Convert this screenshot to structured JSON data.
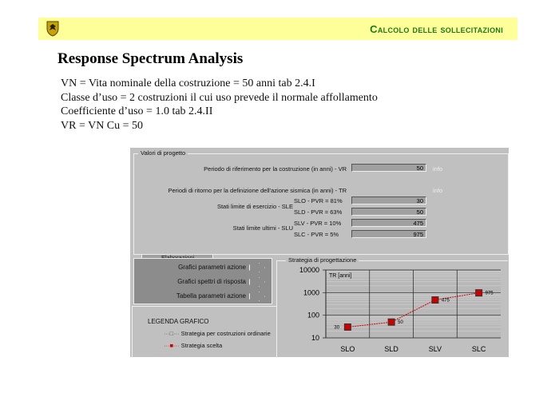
{
  "header": {
    "title": "Calcolo delle sollecitazioni",
    "logo": "eagle-crest-logo"
  },
  "page_title": "Response Spectrum Analysis",
  "lines": [
    "VN = Vita nominale della costruzione = 50 anni tab 2.4.I",
    "Classe d’uso = 2 costruzioni il cui uso prevede il normale affollamento",
    "Coefficiente d’uso = 1.0 tab 2.4.II",
    "VR = VN Cu = 50"
  ],
  "panel": {
    "group_title": "Valori di progetto",
    "vr_label": "Periodo di riferimento per la costruzione (in anni) - VR",
    "vr_value": "50",
    "info": "info",
    "tr_label": "Periodi di ritorno per la definizione dell'azione sismica (in anni) - TR",
    "sle_label": "Stati limite di esercizio - SLE",
    "slu_label": "Stati limite ultimi - SLU",
    "states": [
      {
        "label": "SLO - PVR = 81%",
        "value": "30"
      },
      {
        "label": "SLD - PVR = 63%",
        "value": "50"
      },
      {
        "label": "SLV - PVR = 10%",
        "value": "475"
      },
      {
        "label": "SLC - PVR =  5%",
        "value": "975"
      }
    ],
    "elab_tab": "Elaborazioni",
    "buttons": [
      "Grafici parametri azione",
      "Grafici spettri di risposta",
      "Tabella parametri azione"
    ],
    "legend_title": "LEGENDA GRAFICO",
    "legend": [
      "Strategia per costruzioni ordinarie",
      "Strategia scelta"
    ],
    "chart_group_title": "Strategia di progettazione"
  },
  "chart_data": {
    "type": "line",
    "ylabel": "TR [anni]",
    "yscale": "log",
    "ylim": [
      10,
      10000
    ],
    "yticks": [
      "10",
      "100",
      "1000",
      "10000"
    ],
    "categories": [
      "SLO",
      "SLD",
      "SLV",
      "SLC"
    ],
    "series": [
      {
        "name": "Strategia scelta",
        "values": [
          30,
          50,
          475,
          975
        ],
        "labels": [
          "30",
          "50",
          "475",
          "975"
        ],
        "color": "#cc0000"
      }
    ],
    "grid": true
  }
}
